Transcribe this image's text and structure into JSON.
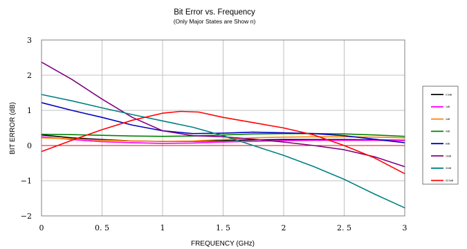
{
  "chart_data": {
    "type": "line",
    "title": "Bit Error vs. Frequency",
    "subtitle": "(Only Major States are Show n)",
    "xlabel": "FREQUENCY (GHz)",
    "ylabel": "BIT ERROR (dB)",
    "xlim": [
      0,
      3
    ],
    "ylim": [
      -2,
      3
    ],
    "xticks": [
      0,
      0.5,
      1,
      1.5,
      2,
      2.5,
      3
    ],
    "xtick_labels": [
      "0",
      "0. 5",
      "1",
      "1. 5",
      "2",
      "2. 5",
      "3"
    ],
    "yticks": [
      -2,
      -1,
      0,
      1,
      2,
      3
    ],
    "ytick_labels": [
      "−2",
      "−1",
      "0",
      "1",
      "2",
      "3"
    ],
    "grid": true,
    "legend_position": "right",
    "reference_line": {
      "y": 0,
      "color": "#ff0000"
    },
    "series": [
      {
        "name": "0.5dB",
        "color": "#000000",
        "x": [
          0,
          0.25,
          0.5,
          0.75,
          1,
          1.25,
          1.5,
          1.75,
          2,
          2.25,
          2.5,
          2.75,
          3
        ],
        "y": [
          0.3,
          0.22,
          0.17,
          0.13,
          0.12,
          0.12,
          0.14,
          0.16,
          0.17,
          0.17,
          0.17,
          0.16,
          0.15
        ]
      },
      {
        "name": "1dB",
        "color": "#ff00ff",
        "x": [
          0,
          0.25,
          0.5,
          0.75,
          1,
          1.25,
          1.5,
          1.75,
          2,
          2.25,
          2.5,
          2.75,
          3
        ],
        "y": [
          0.25,
          0.17,
          0.11,
          0.08,
          0.06,
          0.07,
          0.1,
          0.12,
          0.14,
          0.15,
          0.15,
          0.15,
          0.14
        ]
      },
      {
        "name": "2dB",
        "color": "#ff8000",
        "x": [
          0,
          0.25,
          0.5,
          0.75,
          1,
          1.25,
          1.5,
          1.75,
          2,
          2.25,
          2.5,
          2.75,
          3
        ],
        "y": [
          0.22,
          0.19,
          0.15,
          0.13,
          0.12,
          0.13,
          0.17,
          0.22,
          0.24,
          0.25,
          0.25,
          0.24,
          0.22
        ]
      },
      {
        "name": "4dB",
        "color": "#008000",
        "x": [
          0,
          0.25,
          0.5,
          0.75,
          1,
          1.25,
          1.5,
          1.75,
          2,
          2.25,
          2.5,
          2.75,
          3
        ],
        "y": [
          0.32,
          0.31,
          0.29,
          0.27,
          0.26,
          0.27,
          0.3,
          0.33,
          0.34,
          0.34,
          0.33,
          0.3,
          0.26
        ]
      },
      {
        "name": "8dB",
        "color": "#0000c0",
        "x": [
          0,
          0.25,
          0.5,
          0.75,
          1,
          1.25,
          1.5,
          1.75,
          2,
          2.25,
          2.5,
          2.75,
          3
        ],
        "y": [
          1.22,
          1.0,
          0.8,
          0.58,
          0.42,
          0.34,
          0.35,
          0.38,
          0.36,
          0.34,
          0.28,
          0.18,
          0.08
        ]
      },
      {
        "name": "16dB",
        "color": "#800080",
        "x": [
          0,
          0.25,
          0.5,
          0.75,
          1,
          1.25,
          1.5,
          1.75,
          2,
          2.25,
          2.5,
          2.75,
          3
        ],
        "y": [
          2.37,
          1.88,
          1.32,
          0.8,
          0.42,
          0.28,
          0.25,
          0.18,
          0.1,
          0.0,
          -0.12,
          -0.32,
          -0.6
        ]
      },
      {
        "name": "32dB",
        "color": "#008080",
        "x": [
          0,
          0.25,
          0.5,
          0.75,
          1,
          1.25,
          1.5,
          1.75,
          2,
          2.25,
          2.5,
          2.75,
          3
        ],
        "y": [
          1.45,
          1.27,
          1.07,
          0.88,
          0.7,
          0.52,
          0.28,
          0.0,
          -0.28,
          -0.6,
          -0.96,
          -1.38,
          -1.77
        ]
      },
      {
        "name": "63.5dB",
        "color": "#ff0000",
        "x": [
          0,
          0.25,
          0.5,
          0.75,
          1,
          1.15,
          1.3,
          1.5,
          1.75,
          2,
          2.25,
          2.5,
          2.75,
          3
        ],
        "y": [
          -0.17,
          0.15,
          0.45,
          0.72,
          0.92,
          0.97,
          0.95,
          0.8,
          0.65,
          0.5,
          0.3,
          0.0,
          -0.35,
          -0.8
        ]
      }
    ]
  }
}
